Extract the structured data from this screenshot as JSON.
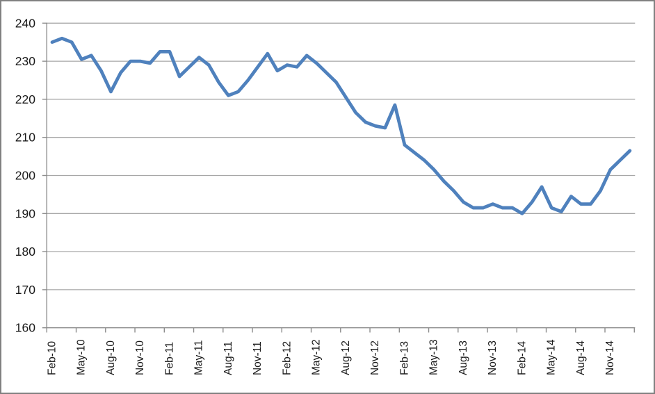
{
  "chart_data": {
    "type": "line",
    "title": "",
    "xlabel": "",
    "ylabel": "",
    "ylim": [
      160,
      240
    ],
    "y_ticks": [
      240,
      230,
      220,
      210,
      200,
      190,
      180,
      170,
      160
    ],
    "x_tick_labels": [
      "Feb-10",
      "May-10",
      "Aug-10",
      "Nov-10",
      "Feb-11",
      "May-11",
      "Aug-11",
      "Nov-11",
      "Feb-12",
      "May-12",
      "Aug-12",
      "Nov-12",
      "Feb-13",
      "May-13",
      "Aug-13",
      "Nov-13",
      "Feb-14",
      "May-14",
      "Aug-14",
      "Nov-14"
    ],
    "x_label_interval_months": 3,
    "grid": "horizontal",
    "legend_position": "none",
    "series": [
      {
        "name": "series-1",
        "months": [
          "Feb-10",
          "Mar-10",
          "Apr-10",
          "May-10",
          "Jun-10",
          "Jul-10",
          "Aug-10",
          "Sep-10",
          "Oct-10",
          "Nov-10",
          "Dec-10",
          "Jan-11",
          "Feb-11",
          "Mar-11",
          "Apr-11",
          "May-11",
          "Jun-11",
          "Jul-11",
          "Aug-11",
          "Sep-11",
          "Oct-11",
          "Nov-11",
          "Dec-11",
          "Jan-12",
          "Feb-12",
          "Mar-12",
          "Apr-12",
          "May-12",
          "Jun-12",
          "Jul-12",
          "Aug-12",
          "Sep-12",
          "Oct-12",
          "Nov-12",
          "Dec-12",
          "Jan-13",
          "Feb-13",
          "Mar-13",
          "Apr-13",
          "May-13",
          "Jun-13",
          "Jul-13",
          "Aug-13",
          "Sep-13",
          "Oct-13",
          "Nov-13",
          "Dec-13",
          "Jan-14",
          "Feb-14",
          "Mar-14",
          "Apr-14",
          "May-14",
          "Jun-14",
          "Jul-14",
          "Aug-14",
          "Sep-14",
          "Oct-14",
          "Nov-14",
          "Dec-14",
          "Jan-15"
        ],
        "values": [
          235,
          236,
          235,
          230.5,
          231.5,
          227.5,
          222,
          227,
          230,
          230,
          229.5,
          232.5,
          232.5,
          226,
          228.5,
          231,
          229,
          224.5,
          221,
          222,
          225,
          228.5,
          232,
          227.5,
          229,
          228.5,
          231.5,
          229.5,
          227,
          224.5,
          220.5,
          216.5,
          214,
          213,
          212.5,
          218.5,
          208,
          206,
          204,
          201.5,
          198.5,
          196,
          193,
          191.5,
          191.5,
          192.5,
          191.5,
          191.5,
          190,
          193,
          197,
          191.5,
          190.5,
          194.5,
          192.5,
          192.5,
          196,
          201.5,
          204,
          206.5
        ]
      }
    ],
    "colors": {
      "series_line": "#4F81BD",
      "gridline": "#A6A6A6",
      "axis": "#8C8C8C",
      "tick": "#8C8C8C",
      "label_text": "#1a1a1a",
      "outer_border": "#808080",
      "background": "#FFFFFF"
    }
  }
}
